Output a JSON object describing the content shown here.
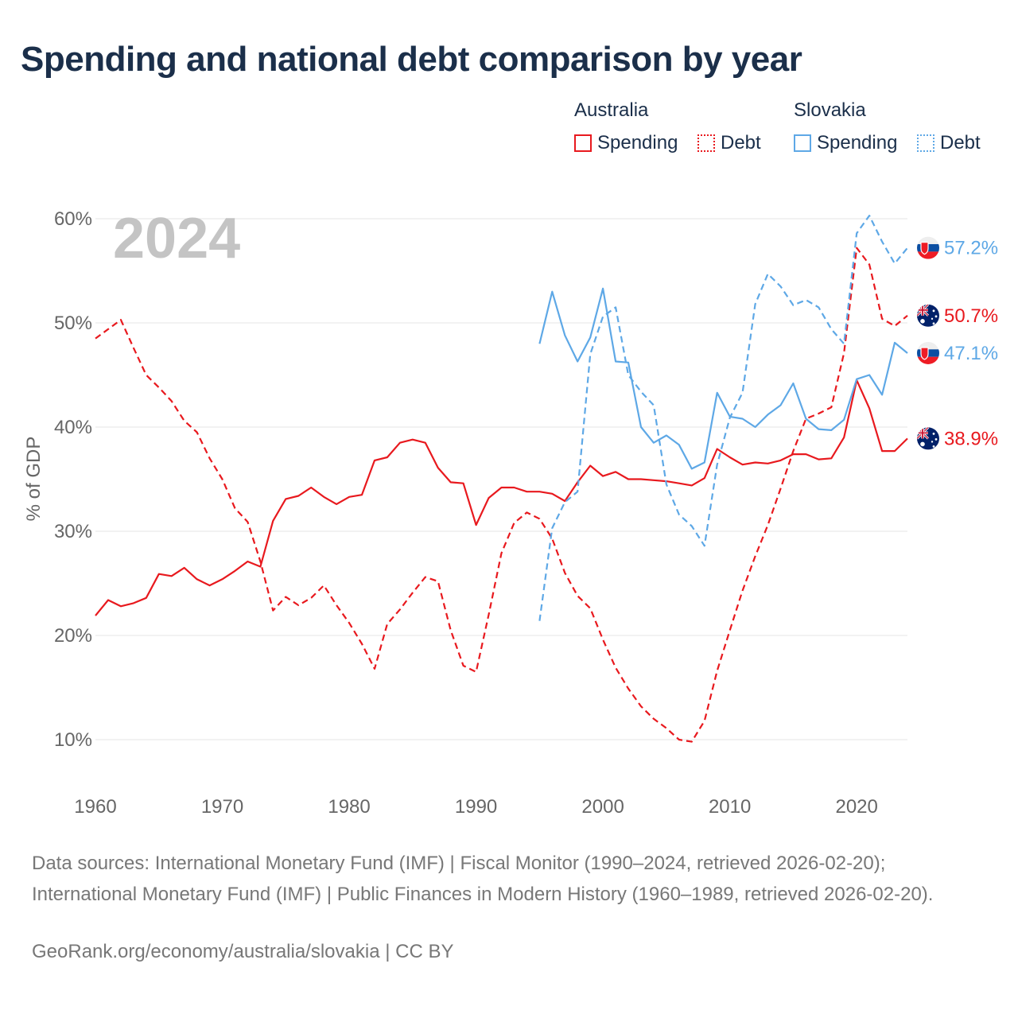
{
  "title": "Spending and national debt comparison by year",
  "legend": {
    "groups": [
      {
        "country": "Australia",
        "color": "#e8191e",
        "spending_label": "Spending",
        "debt_label": "Debt"
      },
      {
        "country": "Slovakia",
        "color": "#5ea8e6",
        "spending_label": "Spending",
        "debt_label": "Debt"
      }
    ]
  },
  "chart_data": {
    "type": "line",
    "title": "Spending and national debt comparison by year",
    "year_watermark": "2024",
    "ylabel": "% of GDP",
    "xlabel": "",
    "xlim": [
      1960,
      2024
    ],
    "ylim": [
      5,
      62
    ],
    "xticks": [
      1960,
      1970,
      1980,
      1990,
      2000,
      2010,
      2020
    ],
    "yticks": [
      10,
      20,
      30,
      40,
      50,
      60
    ],
    "ytick_labels": [
      "10%",
      "20%",
      "30%",
      "40%",
      "50%",
      "60%"
    ],
    "series": [
      {
        "name": "Australia Spending",
        "country": "Australia",
        "kind": "Spending",
        "color": "#e8191e",
        "dash": "solid",
        "end_label": "38.9%",
        "x": [
          1960,
          1961,
          1962,
          1963,
          1964,
          1965,
          1966,
          1967,
          1968,
          1969,
          1970,
          1971,
          1972,
          1973,
          1974,
          1975,
          1976,
          1977,
          1978,
          1979,
          1980,
          1981,
          1982,
          1983,
          1984,
          1985,
          1986,
          1987,
          1988,
          1989,
          1990,
          1991,
          1992,
          1993,
          1994,
          1995,
          1996,
          1997,
          1998,
          1999,
          2000,
          2001,
          2002,
          2003,
          2004,
          2005,
          2006,
          2007,
          2008,
          2009,
          2010,
          2011,
          2012,
          2013,
          2014,
          2015,
          2016,
          2017,
          2018,
          2019,
          2020,
          2021,
          2022,
          2023,
          2024
        ],
        "values": [
          21.9,
          23.4,
          22.8,
          23.1,
          23.6,
          25.9,
          25.7,
          26.5,
          25.4,
          24.8,
          25.4,
          26.2,
          27.1,
          26.6,
          31.0,
          33.1,
          33.4,
          34.2,
          33.3,
          32.6,
          33.3,
          33.5,
          36.8,
          37.1,
          38.5,
          38.8,
          38.5,
          36.1,
          34.7,
          34.6,
          30.6,
          33.2,
          34.2,
          34.2,
          33.8,
          33.8,
          33.6,
          32.9,
          34.7,
          36.3,
          35.3,
          35.7,
          35.0,
          35.0,
          34.9,
          34.8,
          34.6,
          34.4,
          35.1,
          37.9,
          37.1,
          36.4,
          36.6,
          36.5,
          36.8,
          37.4,
          37.4,
          36.9,
          37.0,
          39.0,
          44.5,
          41.8,
          37.7,
          37.7,
          38.9
        ]
      },
      {
        "name": "Australia Debt",
        "country": "Australia",
        "kind": "Debt",
        "color": "#e8191e",
        "dash": "dashed",
        "end_label": "50.7%",
        "x": [
          1960,
          1961,
          1962,
          1963,
          1964,
          1965,
          1966,
          1967,
          1968,
          1969,
          1970,
          1971,
          1972,
          1973,
          1974,
          1975,
          1976,
          1977,
          1978,
          1979,
          1980,
          1981,
          1982,
          1983,
          1984,
          1985,
          1986,
          1987,
          1988,
          1989,
          1990,
          1991,
          1992,
          1993,
          1994,
          1995,
          1996,
          1997,
          1998,
          1999,
          2000,
          2001,
          2002,
          2003,
          2004,
          2005,
          2006,
          2007,
          2008,
          2009,
          2010,
          2011,
          2012,
          2013,
          2014,
          2015,
          2016,
          2017,
          2018,
          2019,
          2020,
          2021,
          2022,
          2023,
          2024
        ],
        "values": [
          48.5,
          49.4,
          50.3,
          47.6,
          45.0,
          43.8,
          42.5,
          40.6,
          39.5,
          37.0,
          35.0,
          32.2,
          30.9,
          27.1,
          22.4,
          23.7,
          22.9,
          23.6,
          24.8,
          22.9,
          21.2,
          19.2,
          16.8,
          21.1,
          22.5,
          24.1,
          25.6,
          25.2,
          20.5,
          17.1,
          16.5,
          22.0,
          27.9,
          30.8,
          31.8,
          31.2,
          29.3,
          26.0,
          23.8,
          22.6,
          19.6,
          16.9,
          14.9,
          13.2,
          12.0,
          11.1,
          10.0,
          9.8,
          11.8,
          16.6,
          20.5,
          24.3,
          27.6,
          30.6,
          34.1,
          37.7,
          40.8,
          41.3,
          41.9,
          47.1,
          57.2,
          55.6,
          50.4,
          49.7,
          50.7
        ]
      },
      {
        "name": "Slovakia Spending",
        "country": "Slovakia",
        "kind": "Spending",
        "color": "#5ea8e6",
        "dash": "solid",
        "end_label": "47.1%",
        "x": [
          1995,
          1996,
          1997,
          1998,
          1999,
          2000,
          2001,
          2002,
          2003,
          2004,
          2005,
          2006,
          2007,
          2008,
          2009,
          2010,
          2011,
          2012,
          2013,
          2014,
          2015,
          2016,
          2017,
          2018,
          2019,
          2020,
          2021,
          2022,
          2023,
          2024
        ],
        "values": [
          48.0,
          53.0,
          48.8,
          46.3,
          48.6,
          53.3,
          46.3,
          46.2,
          40.0,
          38.5,
          39.2,
          38.3,
          36.0,
          36.6,
          43.3,
          41.0,
          40.8,
          40.0,
          41.2,
          42.1,
          44.2,
          40.8,
          39.8,
          39.7,
          40.7,
          44.6,
          45.0,
          43.1,
          48.1,
          47.1
        ]
      },
      {
        "name": "Slovakia Debt",
        "country": "Slovakia",
        "kind": "Debt",
        "color": "#5ea8e6",
        "dash": "dashed",
        "end_label": "57.2%",
        "x": [
          1995,
          1996,
          1997,
          1998,
          1999,
          2000,
          2001,
          2002,
          2003,
          2004,
          2005,
          2006,
          2007,
          2008,
          2009,
          2010,
          2011,
          2012,
          2013,
          2014,
          2015,
          2016,
          2017,
          2018,
          2019,
          2020,
          2021,
          2022,
          2023,
          2024
        ],
        "values": [
          21.4,
          30.3,
          32.8,
          33.8,
          47.0,
          50.6,
          51.5,
          45.0,
          43.4,
          42.1,
          34.5,
          31.6,
          30.5,
          28.6,
          36.4,
          40.9,
          43.3,
          51.8,
          54.7,
          53.5,
          51.7,
          52.2,
          51.5,
          49.4,
          48.0,
          58.6,
          60.3,
          57.8,
          55.7,
          57.2
        ]
      }
    ]
  },
  "footer": {
    "sources": "Data sources: International Monetary Fund (IMF) | Fiscal Monitor (1990–2024, retrieved 2026-02-20); International Monetary Fund (IMF) | Public Finances in Modern History (1960–1989, retrieved 2026-02-20).",
    "credit": "GeoRank.org/economy/australia/slovakia | CC BY"
  }
}
